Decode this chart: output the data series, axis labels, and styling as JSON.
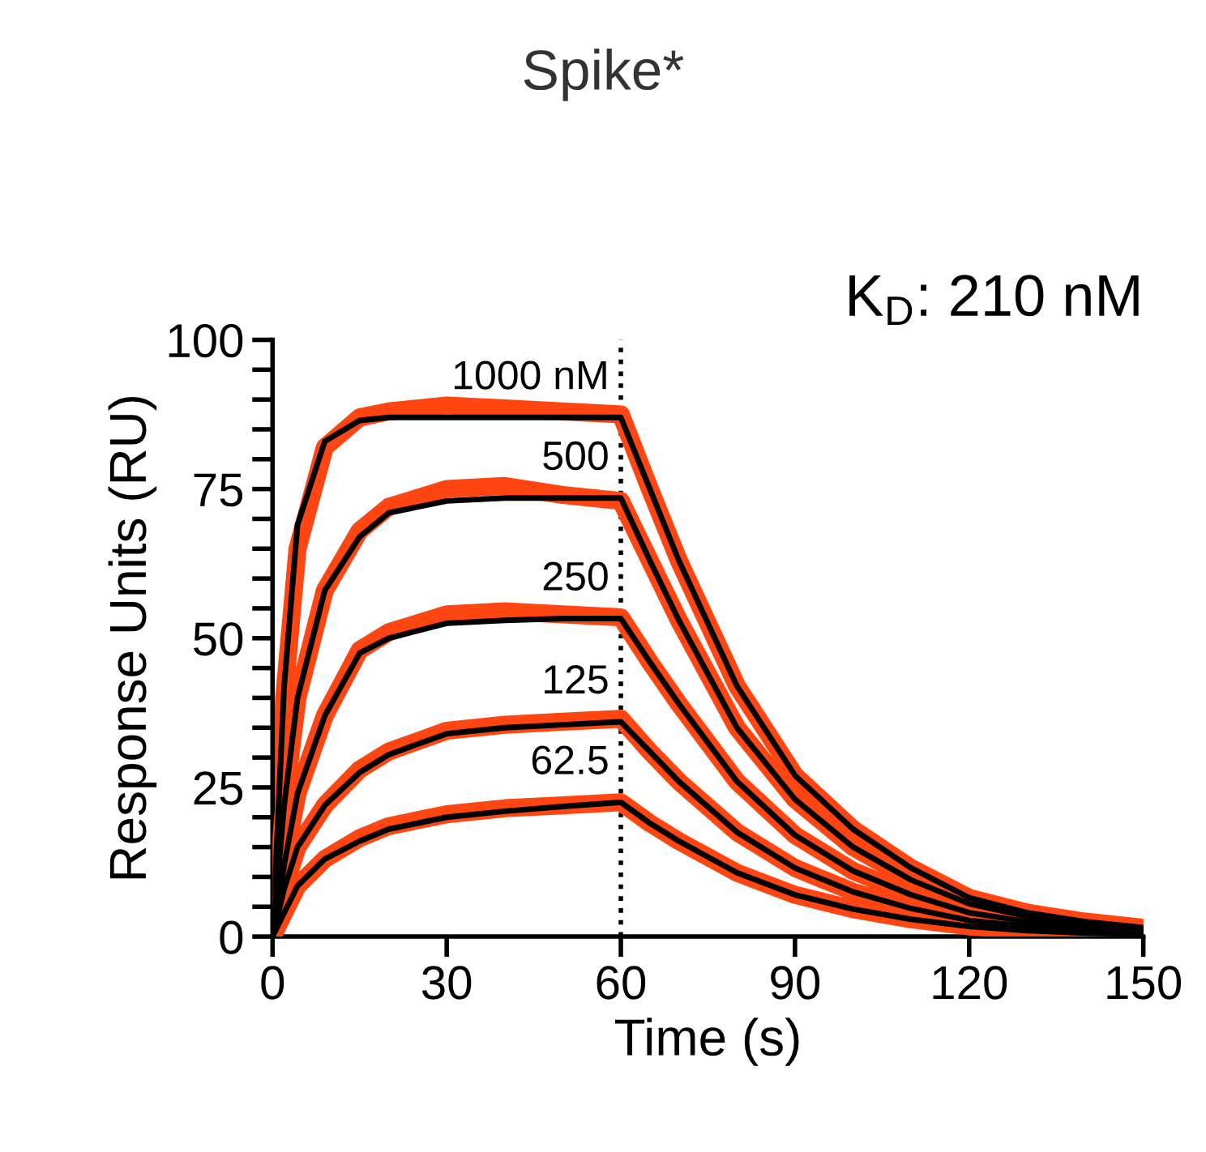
{
  "chart_data": {
    "type": "line",
    "title": "Spike*",
    "xlabel": "Time (s)",
    "ylabel": "Response Units (RU)",
    "xlim": [
      0,
      150
    ],
    "xticks": [
      0,
      30,
      60,
      90,
      120,
      150
    ],
    "ylim": [
      0,
      100
    ],
    "yticks": [
      0,
      {
        "value": 5,
        "label": null
      },
      {
        "value": 10,
        "label": null
      },
      {
        "value": 15,
        "label": null
      },
      {
        "value": 20,
        "label": null
      },
      25,
      {
        "value": 30,
        "label": null
      },
      {
        "value": 35,
        "label": null
      },
      {
        "value": 40,
        "label": null
      },
      {
        "value": 45,
        "label": null
      },
      50,
      {
        "value": 55,
        "label": null
      },
      {
        "value": 60,
        "label": null
      },
      {
        "value": 65,
        "label": null
      },
      {
        "value": 70,
        "label": null
      },
      75,
      {
        "value": 80,
        "label": null
      },
      {
        "value": 85,
        "label": null
      },
      {
        "value": 90,
        "label": null
      },
      {
        "value": 95,
        "label": null
      },
      100
    ],
    "grid": false,
    "legend": false,
    "marker": "none",
    "line_style": "solid",
    "x": [
      0,
      2,
      4.3,
      9,
      15,
      20,
      30,
      40,
      50,
      60,
      65,
      70,
      80,
      90,
      100,
      110,
      120,
      130,
      140,
      150
    ],
    "series": [
      {
        "color": "#ff4512",
        "values": [
          0,
          40,
          65,
          82,
          87,
          88,
          89,
          88.5,
          88,
          87.5,
          75,
          63,
          42,
          27,
          18,
          11.5,
          6.5,
          4,
          2.5,
          1.5
        ]
      },
      {
        "color": "#ff4512",
        "values": [
          0,
          22,
          40,
          58,
          68,
          72,
          75,
          75.5,
          74,
          73,
          63,
          53,
          35,
          23,
          15,
          9.5,
          5.5,
          3.4,
          2.1,
          1.3
        ]
      },
      {
        "color": "#ff4512",
        "values": [
          0,
          12,
          24,
          37,
          48,
          51,
          54,
          54.5,
          54,
          53.5,
          46,
          39,
          26,
          17,
          11,
          7,
          4,
          2.5,
          1.5,
          1
        ]
      },
      {
        "color": "#ff4512",
        "values": [
          0,
          8,
          15,
          22,
          28,
          31,
          34.5,
          35.5,
          36,
          36.5,
          31,
          26,
          17.5,
          11.5,
          7.5,
          4.7,
          2.7,
          1.7,
          1,
          0.6
        ]
      },
      {
        "color": "#ff4512",
        "values": [
          0,
          4,
          8.5,
          13,
          16.5,
          18.5,
          20.5,
          21.5,
          22,
          22.5,
          19,
          16,
          10.7,
          7,
          4.6,
          2.9,
          1.7,
          1,
          0.6,
          0.4
        ]
      },
      {
        "color": "#000000",
        "values": [
          0,
          42,
          69,
          83,
          86.5,
          87,
          87,
          87,
          87,
          87,
          75,
          63,
          42,
          27,
          18,
          11.5,
          6.5,
          4,
          2.5,
          1.5
        ]
      },
      {
        "color": "#000000",
        "values": [
          0,
          22,
          40,
          58,
          67,
          71,
          73,
          73.5,
          73.5,
          73.5,
          63,
          53,
          35,
          23,
          15,
          9.5,
          5.5,
          3.4,
          2.1,
          1.3
        ]
      },
      {
        "color": "#000000",
        "values": [
          0,
          12,
          24,
          37,
          47.5,
          50,
          52.5,
          53,
          53.3,
          53.3,
          46,
          39,
          26,
          17,
          11,
          7,
          4,
          2.5,
          1.5,
          1
        ]
      },
      {
        "color": "#000000",
        "values": [
          0,
          8,
          15,
          22,
          27.5,
          30.5,
          34,
          35,
          35.5,
          36,
          31,
          26,
          17.5,
          11.5,
          7.5,
          4.7,
          2.7,
          1.7,
          1,
          0.6
        ]
      },
      {
        "color": "#000000",
        "values": [
          0,
          4,
          8.5,
          13,
          16,
          18,
          20,
          21,
          21.8,
          22.5,
          19,
          16,
          10.7,
          7,
          4.6,
          2.9,
          1.7,
          1,
          0.6,
          0.4
        ]
      }
    ],
    "ref_lines": [
      {
        "axis": "x",
        "value": 60,
        "color": "#000000",
        "line_style": "dotted"
      }
    ],
    "annotations": [
      "1000 nM",
      "500",
      "250",
      "125",
      "62.5",
      "K$_{D}$: 210 nM"
    ]
  }
}
